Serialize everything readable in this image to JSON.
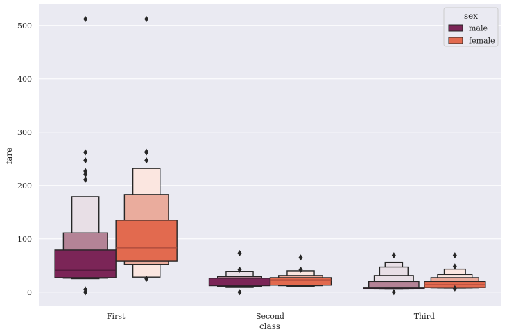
{
  "chart_data": {
    "type": "boxen",
    "xlabel": "class",
    "ylabel": "fare",
    "categories": [
      "First",
      "Second",
      "Third"
    ],
    "ylim": [
      -25,
      540
    ],
    "yticks": [
      0,
      100,
      200,
      300,
      400,
      500
    ],
    "grid": true,
    "legend": {
      "title": "sex",
      "position": "top-right",
      "entries": [
        {
          "label": "male",
          "color": "#7b2557"
        },
        {
          "label": "female",
          "color": "#e26a4f"
        }
      ]
    },
    "colors": {
      "background": "#eaeaf2",
      "grid": "#ffffff",
      "male": [
        "#7b2557",
        "#b48396",
        "#e8dfe6"
      ],
      "female": [
        "#e26a4f",
        "#eaac9d",
        "#fbe6e0"
      ],
      "edge": "#262626"
    },
    "series": [
      {
        "name": "male",
        "groups": [
          {
            "category": "First",
            "median": 41,
            "boxes": [
              [
                27,
                79
              ],
              [
                26,
                111
              ],
              [
                25,
                179
              ]
            ],
            "outliers": [
              512,
              262,
              247,
              227,
              221,
              211,
              5,
              0,
              0
            ]
          },
          {
            "category": "Second",
            "median": 13,
            "boxes": [
              [
                12,
                26
              ],
              [
                11,
                29
              ],
              [
                10,
                39
              ]
            ],
            "outliers": [
              73,
              42,
              0
            ]
          },
          {
            "category": "Third",
            "median": 8,
            "boxes": [
              [
                7.5,
                9
              ],
              [
                7.2,
                20
              ],
              [
                7,
                31
              ],
              [
                6.9,
                47
              ],
              [
                6.8,
                56
              ]
            ],
            "outliers": [
              69,
              0
            ]
          }
        ]
      },
      {
        "name": "female",
        "groups": [
          {
            "category": "First",
            "median": 83,
            "boxes": [
              [
                58,
                135
              ],
              [
                52,
                183
              ],
              [
                28,
                232
              ]
            ],
            "outliers": [
              512,
              263,
              262,
              247,
              25
            ]
          },
          {
            "category": "Second",
            "median": 23,
            "boxes": [
              [
                13,
                27
              ],
              [
                12,
                31
              ],
              [
                11,
                40
              ]
            ],
            "outliers": [
              65,
              42
            ]
          },
          {
            "category": "Third",
            "median": 14,
            "boxes": [
              [
                8.5,
                20
              ],
              [
                8,
                27
              ],
              [
                7.8,
                33
              ],
              [
                7.6,
                43
              ]
            ],
            "outliers": [
              69,
              48,
              7
            ]
          }
        ]
      }
    ]
  }
}
